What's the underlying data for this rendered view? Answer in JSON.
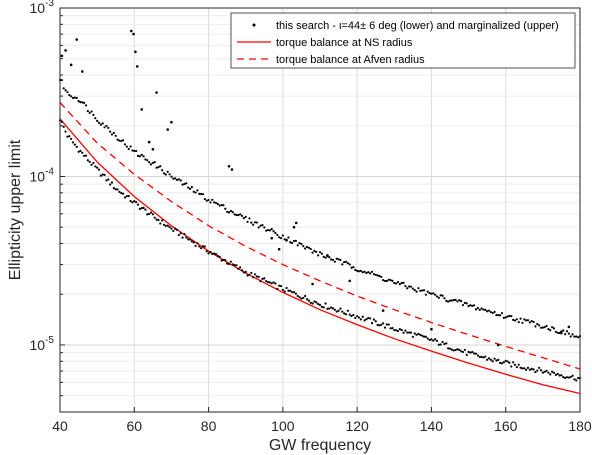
{
  "chart_data": {
    "type": "scatter",
    "xlabel": "GW frequency",
    "ylabel": "Ellipticity upper limit",
    "xlim": [
      40,
      180
    ],
    "ylim": [
      4e-06,
      0.001
    ],
    "yscale": "log",
    "grid": true,
    "legend_position": "top-right",
    "x_ticks": [
      "40",
      "60",
      "80",
      "100",
      "120",
      "140",
      "160",
      "180"
    ],
    "y_ticks": [
      {
        "base": "10",
        "exp": "-5",
        "value": 1e-05
      },
      {
        "base": "10",
        "exp": "-4",
        "value": 0.0001
      },
      {
        "base": "10",
        "exp": "-3",
        "value": 0.001
      }
    ],
    "legend": [
      {
        "label": "this search - ι=44± 6 deg (lower) and marginalized (upper)",
        "style": "dot",
        "color": "#000000"
      },
      {
        "label": "torque balance at NS radius",
        "style": "solid",
        "color": "#ff0000"
      },
      {
        "label": "torque balance at Afven radius",
        "style": "dashed",
        "color": "#ff0000"
      }
    ],
    "series": [
      {
        "name": "this search - ι=44± 6 deg (lower)",
        "style": "dot",
        "x": [
          40,
          42,
          45,
          50,
          55,
          60,
          65,
          70,
          80,
          90,
          100,
          110,
          120,
          130,
          140,
          150,
          160,
          170,
          180
        ],
        "y": [
          0.00022,
          0.000175,
          0.000145,
          0.00011,
          8.5e-05,
          7e-05,
          5.8e-05,
          4.9e-05,
          3.6e-05,
          2.7e-05,
          2.15e-05,
          1.75e-05,
          1.48e-05,
          1.25e-05,
          1.07e-05,
          8.9e-06,
          7.8e-06,
          7e-06,
          6.3e-06
        ]
      },
      {
        "name": "marginalized (upper)",
        "style": "dot",
        "x": [
          40,
          42,
          45,
          50,
          55,
          60,
          65,
          70,
          80,
          90,
          100,
          110,
          120,
          130,
          140,
          150,
          160,
          170,
          180
        ],
        "y": [
          0.00038,
          0.00031,
          0.00029,
          0.00022,
          0.000175,
          0.00014,
          0.00012,
          0.0001,
          7.3e-05,
          5.6e-05,
          4.4e-05,
          3.45e-05,
          2.85e-05,
          2.35e-05,
          2e-05,
          1.72e-05,
          1.48e-05,
          1.3e-05,
          1.1e-05
        ]
      },
      {
        "name": "outliers",
        "style": "dot",
        "x": [
          40.5,
          41.5,
          43,
          44.5,
          46,
          59.2,
          59.8,
          60.3,
          60.8,
          62,
          64,
          65,
          66,
          69,
          70,
          85.5,
          86.3,
          97,
          99,
          101,
          103,
          103.6,
          108,
          112,
          118,
          127,
          140,
          158,
          175,
          177
        ],
        "y": [
          0.00052,
          0.00056,
          0.00046,
          0.00065,
          0.00042,
          0.00073,
          0.0007,
          0.00055,
          0.00045,
          0.00025,
          0.00016,
          0.000145,
          0.000315,
          0.00019,
          0.00021,
          0.000115,
          0.00011,
          4.3e-05,
          3.7e-05,
          4.2e-05,
          5e-05,
          5.3e-05,
          2.3e-05,
          3.4e-05,
          2.4e-05,
          1.6e-05,
          1.24e-05,
          1e-05,
          1.2e-05,
          1.28e-05
        ]
      },
      {
        "name": "torque balance at NS radius",
        "style": "solid",
        "x": [
          40,
          50,
          60,
          70,
          80,
          90,
          100,
          110,
          120,
          130,
          140,
          150,
          160,
          170,
          180
        ],
        "y": [
          0.00022,
          0.000122,
          7.6e-05,
          5.1e-05,
          3.6e-05,
          2.67e-05,
          2.05e-05,
          1.62e-05,
          1.32e-05,
          1.09e-05,
          9.2e-06,
          7.8e-06,
          6.7e-06,
          5.8e-06,
          5.15e-06
        ]
      },
      {
        "name": "torque balance at Afven radius",
        "style": "dashed",
        "x": [
          40,
          50,
          60,
          70,
          80,
          90,
          100,
          110,
          120,
          130,
          140,
          150,
          160,
          170,
          180
        ],
        "y": [
          0.000275,
          0.000158,
          0.000103,
          7.1e-05,
          5.1e-05,
          3.85e-05,
          3e-05,
          2.4e-05,
          1.95e-05,
          1.62e-05,
          1.36e-05,
          1.15e-05,
          9.8e-06,
          8.4e-06,
          7.2e-06
        ]
      }
    ]
  }
}
